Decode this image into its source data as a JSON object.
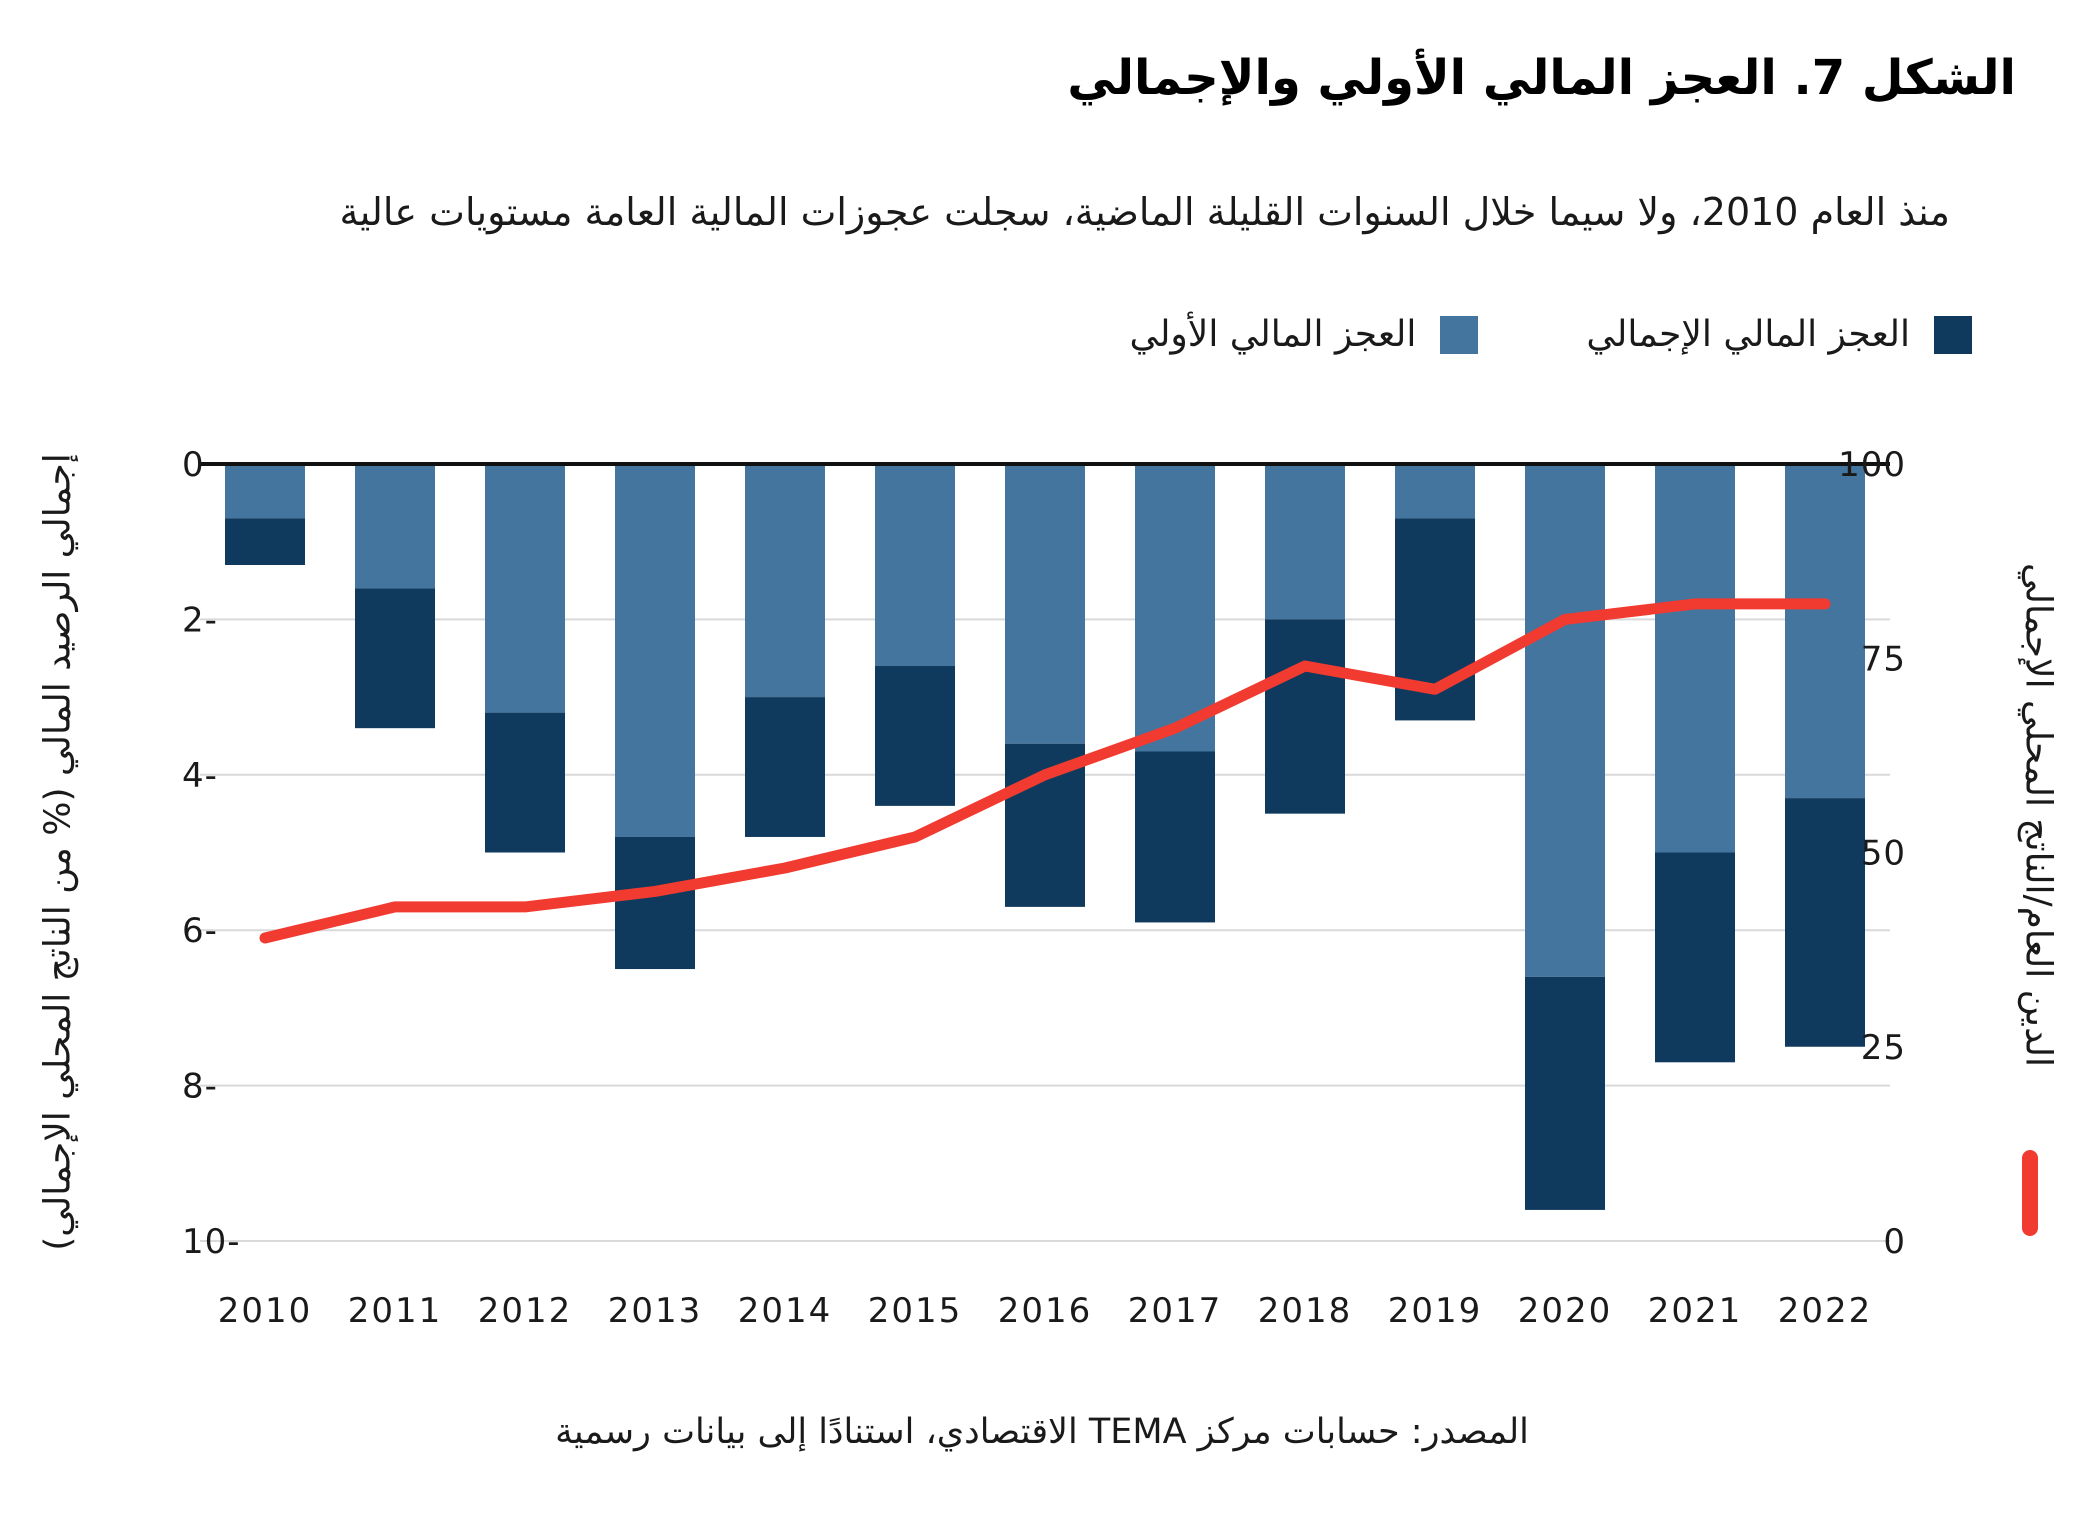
{
  "title": "الشكل 7. العجز المالي الأولي والإجمالي",
  "subtitle": "منذ العام 2010، ولا سيما خلال السنوات القليلة الماضية، سجلت عجوزات المالية العامة مستويات عالية",
  "source": "المصدر: حسابات مركز TEMA الاقتصادي، استنادًا إلى بيانات رسمية",
  "colors": {
    "primary_deficit": "#44759E",
    "overall_deficit": "#0F3A5D",
    "debt_line": "#F23B30",
    "gridline": "#d9d9d9",
    "axis_line": "#111111"
  },
  "legend": {
    "overall": {
      "label": "العجز المالي الإجمالي",
      "color": "#0F3A5D"
    },
    "primary": {
      "label": "العجز المالي الأولي",
      "color": "#44759E"
    }
  },
  "axes": {
    "left": {
      "title": "إجمالي الرصيد المالي (% من الناتج المحلي الإجمالي)",
      "ticks": [
        0,
        -2,
        -4,
        -6,
        -8,
        -10
      ],
      "range": [
        -10,
        0
      ]
    },
    "right": {
      "title": "الدين العام/الناتج المحلي الإجمالي",
      "ticks": [
        100,
        75,
        50,
        25,
        0
      ],
      "range": [
        0,
        100
      ]
    },
    "x": {
      "categories": [
        "2010",
        "2011",
        "2012",
        "2013",
        "2014",
        "2015",
        "2016",
        "2017",
        "2018",
        "2019",
        "2020",
        "2021",
        "2022"
      ]
    }
  },
  "chart_data": {
    "type": "bar",
    "stacked": true,
    "orientation": "vertical",
    "grid": true,
    "legend_position": "top-right",
    "categories": [
      2010,
      2011,
      2012,
      2013,
      2014,
      2015,
      2016,
      2017,
      2018,
      2019,
      2020,
      2021,
      2022
    ],
    "left_ylim": [
      -10,
      0
    ],
    "right_ylim": [
      0,
      100
    ],
    "series": [
      {
        "name": "العجز المالي الأولي",
        "axis": "left",
        "color": "#44759E",
        "values": [
          -0.7,
          -1.6,
          -3.2,
          -4.8,
          -3.0,
          -2.6,
          -3.6,
          -3.7,
          -2.0,
          -0.7,
          -6.6,
          -5.0,
          -4.3
        ]
      },
      {
        "name": "العجز المالي الإجمالي",
        "axis": "left",
        "color": "#0F3A5D",
        "values": [
          -1.3,
          -3.4,
          -5.0,
          -6.5,
          -4.8,
          -4.4,
          -5.7,
          -5.9,
          -4.5,
          -3.3,
          -9.6,
          -7.7,
          -7.5
        ]
      }
    ],
    "line_series": {
      "name": "الدين العام/الناتج المحلي الإجمالي",
      "axis": "right",
      "color": "#F23B30",
      "values": [
        39,
        43,
        43,
        45,
        48,
        52,
        60,
        66,
        74,
        71,
        80,
        82,
        82
      ]
    }
  }
}
